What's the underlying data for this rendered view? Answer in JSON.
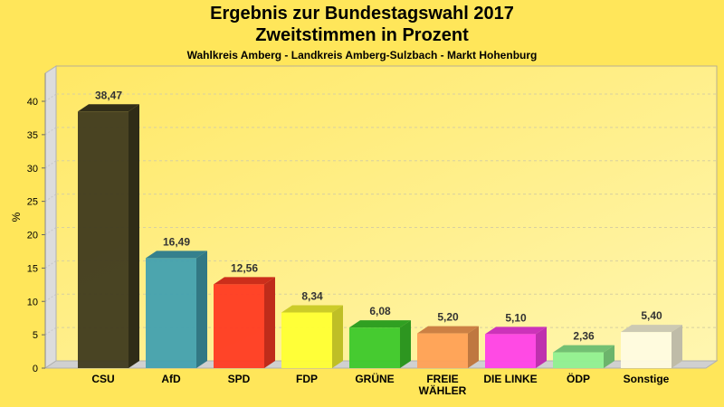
{
  "chart_data": {
    "type": "bar",
    "title": "Ergebnis zur Bundestagswahl 2017",
    "subtitle": "Zweitstimmen in Prozent",
    "subsubtitle": "Wahlkreis Amberg - Landkreis Amberg-Sulzbach - Markt Hohenburg",
    "xlabel": "",
    "ylabel": "%",
    "ylim": [
      0,
      44
    ],
    "yticks": [
      0,
      5,
      10,
      15,
      20,
      25,
      30,
      35,
      40
    ],
    "grid": true,
    "categories": [
      [
        "CSU"
      ],
      [
        "AfD"
      ],
      [
        "SPD"
      ],
      [
        "FDP"
      ],
      [
        "GRÜNE"
      ],
      [
        "FREIE",
        "WÄHLER"
      ],
      [
        "DIE LINKE"
      ],
      [
        "ÖDP"
      ],
      [
        "Sonstige"
      ]
    ],
    "values": [
      38.47,
      16.49,
      12.56,
      8.34,
      6.08,
      5.2,
      5.1,
      2.36,
      5.4
    ],
    "labels": [
      "38,47",
      "16,49",
      "12,56",
      "8,34",
      "6,08",
      "5,20",
      "5,10",
      "2,36",
      "5,40"
    ],
    "colors": [
      "#3f3a1e",
      "#42a0b0",
      "#ff3a22",
      "#ffff33",
      "#3cc82a",
      "#ffa055",
      "#ff40e8",
      "#90f090",
      "#fffbe0"
    ]
  }
}
